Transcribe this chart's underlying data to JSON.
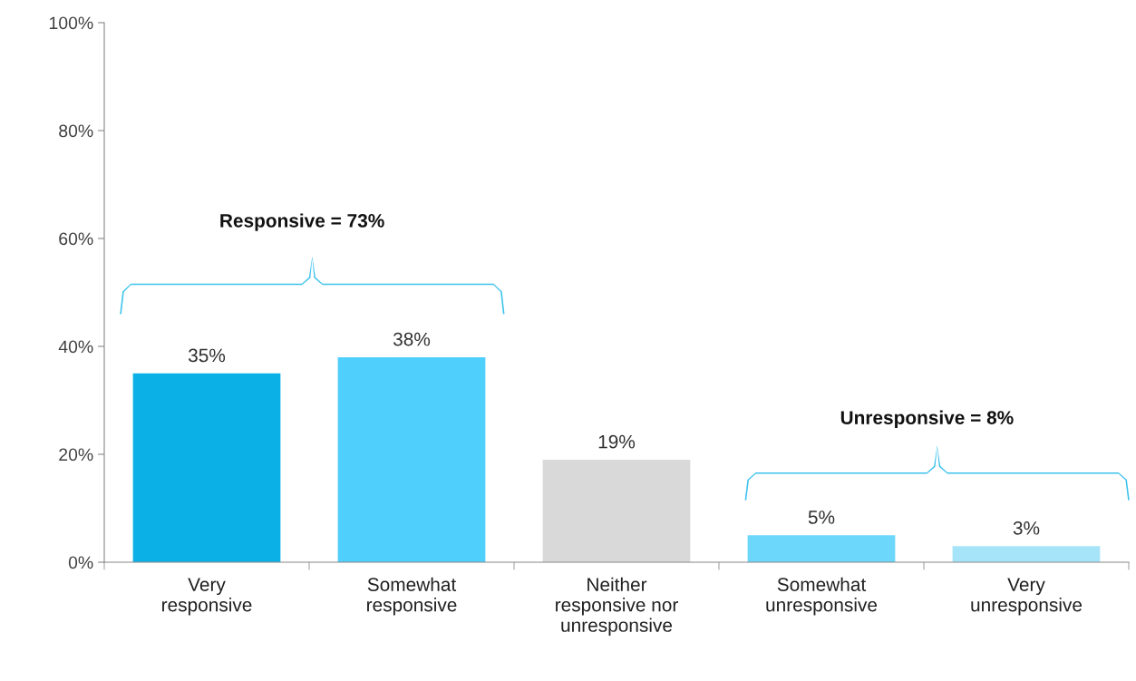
{
  "chart_data": {
    "type": "bar",
    "categories": [
      "Very\nresponsive",
      "Somewhat\nresponsive",
      "Neither\nresponsive nor\nunresponsive",
      "Somewhat\nunresponsive",
      "Very\nunresponsive"
    ],
    "values": [
      35,
      38,
      19,
      5,
      3
    ],
    "colors": [
      "#0ab0e6",
      "#4fcffc",
      "#d9d9d9",
      "#6dd6fb",
      "#a6e4f9"
    ],
    "ylim": [
      0,
      100
    ],
    "yticks": [
      {
        "value": 0,
        "label": "0%"
      },
      {
        "value": 20,
        "label": "20%"
      },
      {
        "value": 40,
        "label": "40%"
      },
      {
        "value": 60,
        "label": "60%"
      },
      {
        "value": 80,
        "label": "80%"
      },
      {
        "value": 100,
        "label": "100%"
      }
    ],
    "value_labels": [
      "35%",
      "38%",
      "19%",
      "5%",
      "3%"
    ],
    "annotations": [
      "Responsive = 73%",
      "Unresponsive = 8%"
    ],
    "grid": false,
    "legend": false
  }
}
